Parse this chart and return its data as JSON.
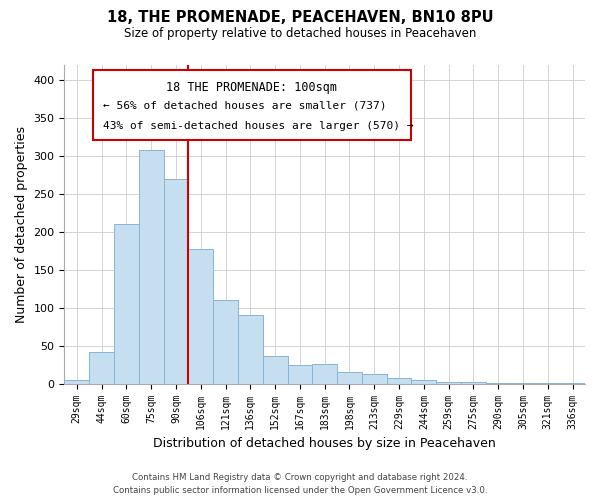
{
  "title": "18, THE PROMENADE, PEACEHAVEN, BN10 8PU",
  "subtitle": "Size of property relative to detached houses in Peacehaven",
  "xlabel": "Distribution of detached houses by size in Peacehaven",
  "ylabel": "Number of detached properties",
  "bar_color": "#c6dff0",
  "bar_edge_color": "#8ab4d4",
  "categories": [
    "29sqm",
    "44sqm",
    "60sqm",
    "75sqm",
    "90sqm",
    "106sqm",
    "121sqm",
    "136sqm",
    "152sqm",
    "167sqm",
    "183sqm",
    "198sqm",
    "213sqm",
    "229sqm",
    "244sqm",
    "259sqm",
    "275sqm",
    "290sqm",
    "305sqm",
    "321sqm",
    "336sqm"
  ],
  "values": [
    5,
    42,
    210,
    308,
    270,
    178,
    110,
    91,
    37,
    24,
    26,
    15,
    13,
    7,
    5,
    2,
    2,
    1,
    1,
    1,
    1
  ],
  "vline_color": "#cc0000",
  "ylim": [
    0,
    420
  ],
  "yticks": [
    0,
    50,
    100,
    150,
    200,
    250,
    300,
    350,
    400
  ],
  "annotation_title": "18 THE PROMENADE: 100sqm",
  "annotation_line1": "← 56% of detached houses are smaller (737)",
  "annotation_line2": "43% of semi-detached houses are larger (570) →",
  "footer1": "Contains HM Land Registry data © Crown copyright and database right 2024.",
  "footer2": "Contains public sector information licensed under the Open Government Licence v3.0."
}
